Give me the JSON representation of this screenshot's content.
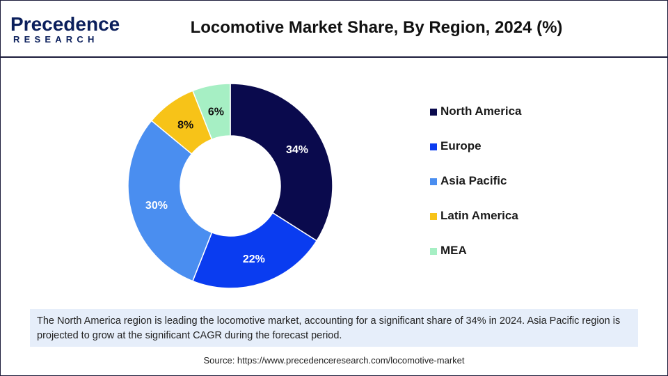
{
  "brand": {
    "logo_word": "Precedence",
    "logo_sub": "RESEARCH"
  },
  "chart_data": {
    "type": "pie",
    "title": "Locomotive Market Share, By Region, 2024 (%)",
    "categories": [
      "North America",
      "Europe",
      "Asia Pacific",
      "Latin America",
      "MEA"
    ],
    "values": [
      34,
      22,
      30,
      8,
      6
    ],
    "data_labels": [
      "34%",
      "22%",
      "30%",
      "8%",
      "6%"
    ],
    "colors": [
      "#0a0a4d",
      "#0a3cf0",
      "#4a8ef0",
      "#f7c318",
      "#a6efc4"
    ],
    "donut": true,
    "legend_position": "right"
  },
  "note": "The North America region is leading the locomotive market, accounting for a significant share of 34% in 2024. Asia Pacific region is projected to grow at the significant CAGR during the forecast period.",
  "source": "Source: https://www.precedenceresearch.com/locomotive-market"
}
